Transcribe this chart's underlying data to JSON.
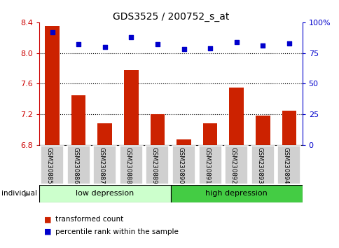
{
  "title": "GDS3525 / 200752_s_at",
  "samples": [
    "GSM230885",
    "GSM230886",
    "GSM230887",
    "GSM230888",
    "GSM230889",
    "GSM230890",
    "GSM230891",
    "GSM230892",
    "GSM230893",
    "GSM230894"
  ],
  "bar_values": [
    8.35,
    7.45,
    7.08,
    7.78,
    7.2,
    6.87,
    7.08,
    7.55,
    7.18,
    7.25
  ],
  "percentile_values": [
    92,
    82,
    80,
    88,
    82,
    78,
    79,
    84,
    81,
    83
  ],
  "bar_color": "#cc2200",
  "dot_color": "#0000cc",
  "ylim_left": [
    6.8,
    8.4
  ],
  "ylim_right": [
    0,
    100
  ],
  "yticks_left": [
    6.8,
    7.2,
    7.6,
    8.0,
    8.4
  ],
  "yticks_right": [
    0,
    25,
    50,
    75,
    100
  ],
  "ytick_labels_right": [
    "0",
    "25",
    "50",
    "75",
    "100%"
  ],
  "group1_label": "low depression",
  "group2_label": "high depression",
  "group1_count": 5,
  "group2_count": 5,
  "group1_color": "#ccffcc",
  "group2_color": "#44cc44",
  "individual_label": "individual",
  "legend_bar_label": "transformed count",
  "legend_dot_label": "percentile rank within the sample",
  "bar_color_legend": "#cc2200",
  "dot_color_legend": "#0000cc",
  "left_axis_color": "#cc0000",
  "right_axis_color": "#0000cc",
  "bar_bottom": 6.8,
  "tick_label_box_color": "#d0d0d0",
  "grid_dotted_levels": [
    8.0,
    7.6,
    7.2
  ]
}
